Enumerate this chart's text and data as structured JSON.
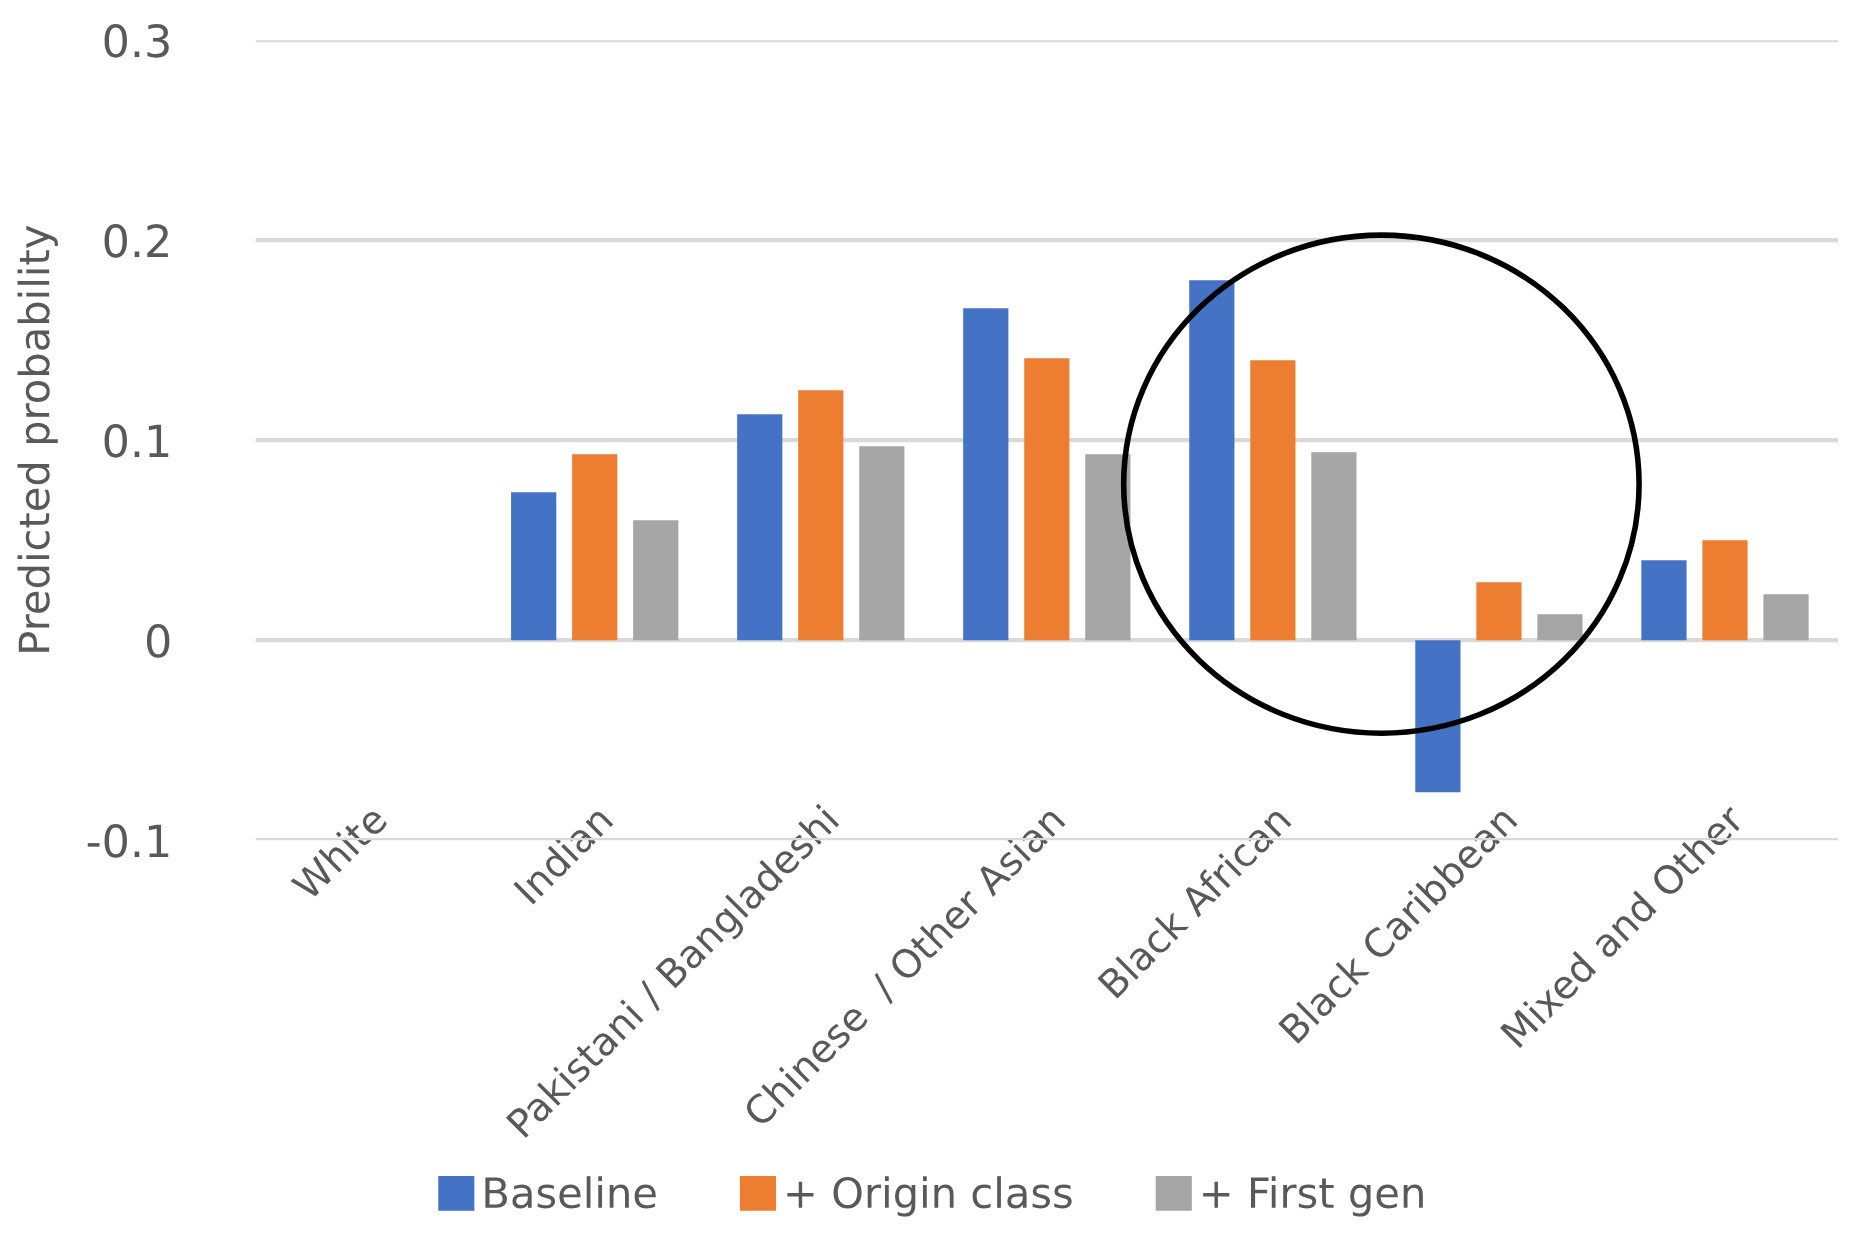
{
  "chart_data": {
    "type": "bar",
    "ylabel": "Predicted probability",
    "categories": [
      "White",
      "Indian",
      "Pakistani / Bangladeshi",
      "Chinese  / Other Asian",
      "Black African",
      "Black Caribbean",
      "Mixed and Other"
    ],
    "series": [
      {
        "name": "Baseline",
        "color": "#4472c4",
        "values": [
          0,
          0.074,
          0.113,
          0.166,
          0.18,
          -0.076,
          0.04
        ]
      },
      {
        "name": "+ Origin class",
        "color": "#ed7d31",
        "values": [
          0,
          0.093,
          0.125,
          0.141,
          0.14,
          0.029,
          0.05
        ]
      },
      {
        "name": "+ First gen",
        "color": "#a5a5a5",
        "values": [
          0,
          0.06,
          0.097,
          0.093,
          0.094,
          0.013,
          0.023
        ]
      }
    ],
    "ylim": [
      -0.1,
      0.3
    ],
    "yticks": [
      -0.1,
      0,
      0.1,
      0.2,
      0.3
    ],
    "grid": "y",
    "legend": "bottom"
  }
}
